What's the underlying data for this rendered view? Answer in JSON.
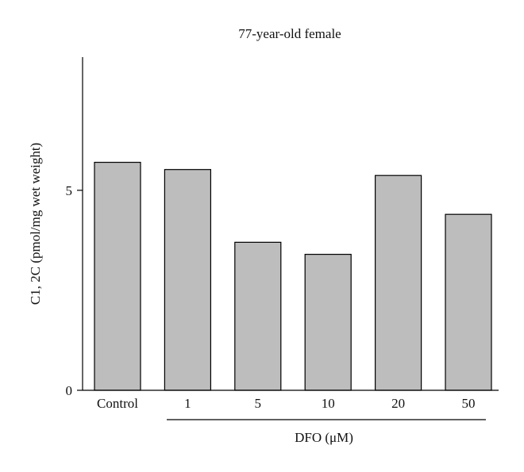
{
  "chart_data": {
    "type": "bar",
    "title": "77-year-old female",
    "ylabel": "C1, 2C (pmol/mg wet weight)",
    "group_label": "DFO (μM)",
    "categories": [
      "Control",
      "1",
      "5",
      "10",
      "20",
      "50"
    ],
    "values": [
      5.7,
      5.52,
      3.7,
      3.4,
      5.37,
      4.4
    ],
    "ylim": [
      0,
      8.33
    ],
    "yticks": [
      0,
      5
    ],
    "bar_color": "#bdbdbd",
    "grid": false
  }
}
